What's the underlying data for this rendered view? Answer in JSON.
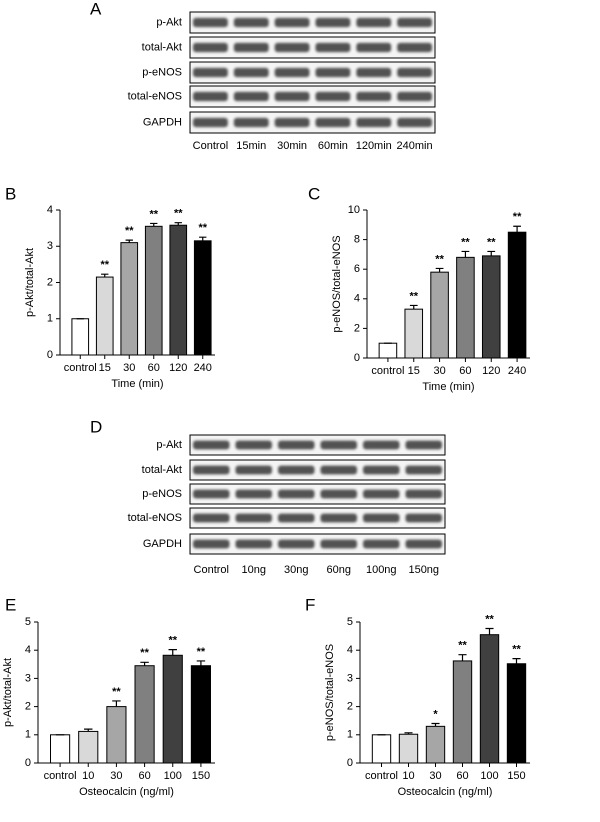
{
  "blots": [
    {
      "panel": "A",
      "rows": [
        "p-Akt",
        "total-Akt",
        "p-eNOS",
        "total-eNOS",
        "GAPDH"
      ],
      "lanes": [
        "Control",
        "15min",
        "30min",
        "60min",
        "120min",
        "240min"
      ]
    },
    {
      "panel": "D",
      "rows": [
        "p-Akt",
        "total-Akt",
        "p-eNOS",
        "total-eNOS",
        "GAPDH"
      ],
      "lanes": [
        "Control",
        "10ng",
        "30ng",
        "60ng",
        "100ng",
        "150ng"
      ]
    }
  ],
  "chart_data": [
    {
      "type": "bar",
      "panel": "B",
      "xlabel": "Time (min)",
      "ylabel": "p-Akt/total-Akt",
      "categories": [
        "control",
        "15",
        "30",
        "60",
        "120",
        "240"
      ],
      "values": [
        1,
        2.15,
        3.1,
        3.55,
        3.58,
        3.15
      ],
      "errors": [
        0,
        0.08,
        0.07,
        0.08,
        0.07,
        0.1
      ],
      "annotations": [
        null,
        "**",
        "**",
        "**",
        "**",
        "**"
      ],
      "colors": [
        "#ffffff",
        "#d9d9d9",
        "#a6a6a6",
        "#808080",
        "#404040",
        "#000000"
      ],
      "ylim": [
        0,
        4
      ],
      "yticks": [
        0,
        1,
        2,
        3,
        4
      ]
    },
    {
      "type": "bar",
      "panel": "C",
      "xlabel": "Time (min)",
      "ylabel": "p-eNOS/total-eNOS",
      "categories": [
        "control",
        "15",
        "30",
        "60",
        "120",
        "240"
      ],
      "values": [
        1,
        3.3,
        5.8,
        6.8,
        6.9,
        8.5
      ],
      "errors": [
        0,
        0.25,
        0.25,
        0.4,
        0.3,
        0.4
      ],
      "annotations": [
        null,
        "**",
        "**",
        "**",
        "**",
        "**"
      ],
      "colors": [
        "#ffffff",
        "#d9d9d9",
        "#a6a6a6",
        "#808080",
        "#404040",
        "#000000"
      ],
      "ylim": [
        0,
        10
      ],
      "yticks": [
        0,
        2,
        4,
        6,
        8,
        10
      ]
    },
    {
      "type": "bar",
      "panel": "E",
      "xlabel": "Osteocalcin (ng/ml)",
      "ylabel": "p-Akt/total-Akt",
      "categories": [
        "control",
        "10",
        "30",
        "60",
        "100",
        "150"
      ],
      "values": [
        1,
        1.12,
        2.0,
        3.45,
        3.82,
        3.45
      ],
      "errors": [
        0,
        0.08,
        0.2,
        0.12,
        0.2,
        0.17
      ],
      "annotations": [
        null,
        null,
        "**",
        "**",
        "**",
        "**"
      ],
      "colors": [
        "#ffffff",
        "#d9d9d9",
        "#a6a6a6",
        "#808080",
        "#404040",
        "#000000"
      ],
      "ylim": [
        0,
        5
      ],
      "yticks": [
        0,
        1,
        2,
        3,
        4,
        5
      ]
    },
    {
      "type": "bar",
      "panel": "F",
      "xlabel": "Osteocalcin (ng/ml)",
      "ylabel": "p-eNOS/total-eNOS",
      "categories": [
        "control",
        "10",
        "30",
        "60",
        "100",
        "150"
      ],
      "values": [
        1,
        1.02,
        1.3,
        3.62,
        4.55,
        3.52
      ],
      "errors": [
        0,
        0.05,
        0.1,
        0.22,
        0.22,
        0.18
      ],
      "annotations": [
        null,
        null,
        "*",
        "**",
        "**",
        "**"
      ],
      "colors": [
        "#ffffff",
        "#d9d9d9",
        "#a6a6a6",
        "#808080",
        "#404040",
        "#000000"
      ],
      "ylim": [
        0,
        5
      ],
      "yticks": [
        0,
        1,
        2,
        3,
        4,
        5
      ]
    }
  ]
}
